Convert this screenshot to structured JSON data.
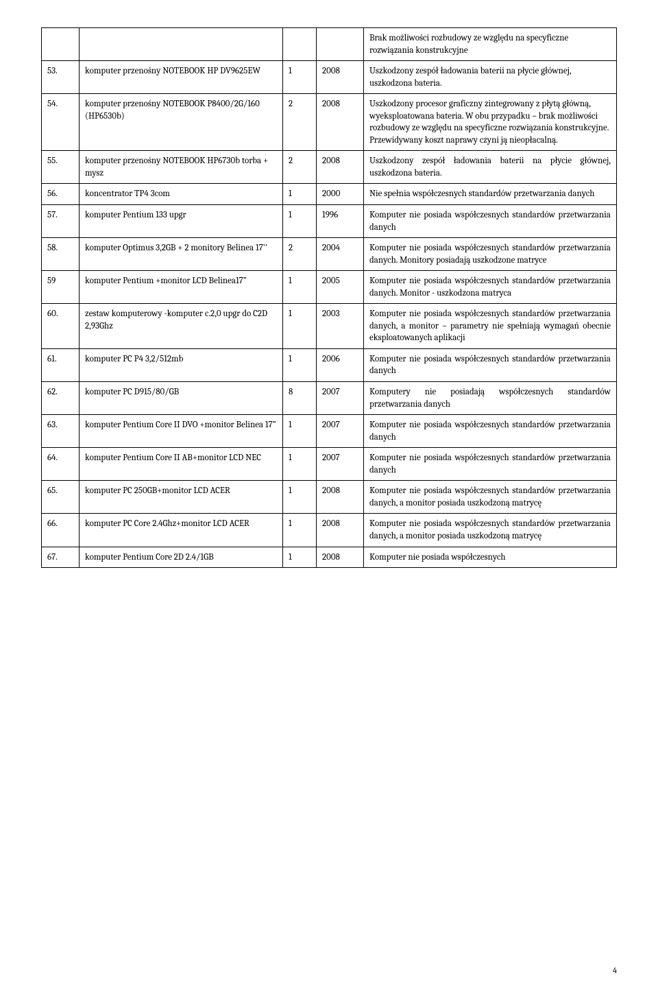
{
  "page_number": "4",
  "rows": [
    {
      "num": "",
      "name": "",
      "qty": "",
      "year": "",
      "desc": "Brak możliwości rozbudowy ze względu na specyficzne rozwiązania konstrukcyjne",
      "justify": false
    },
    {
      "num": "53.",
      "name": "komputer przenośny NOTEBOOK HP DV9625EW",
      "qty": "1",
      "year": "2008",
      "desc": "Uszkodzony zespół ładowania baterii na płycie głównej, uszkodzona bateria.",
      "justify": false
    },
    {
      "num": "54.",
      "name": "komputer przenośny NOTEBOOK P8400/2G/160 (HP6530b)",
      "qty": "2",
      "year": "2008",
      "desc": "Uszkodzony procesor graficzny zintegrowany z płytą główną, wyeksploatowana bateria. W obu przypadku – brak możliwości rozbudowy ze względu na specyficzne rozwiązania konstrukcyjne. Przewidywany koszt naprawy czyni ją nieopłacalną.",
      "justify": false
    },
    {
      "num": "55.",
      "name": "komputer przenośny NOTEBOOK HP6730b torba + mysz",
      "qty": "2",
      "year": "2008",
      "desc": "Uszkodzony zespół ładowania baterii na płycie głównej, uszkodzona bateria.",
      "justify": true
    },
    {
      "num": "56.",
      "name": "koncentrator  TP4 3com",
      "qty": "1",
      "year": "2000",
      "desc": "Nie spełnia współczesnych standardów przetwarzania danych",
      "justify": true
    },
    {
      "num": "57.",
      "name": "komputer Pentium 133 upgr",
      "qty": "1",
      "year": "1996",
      "desc": "Komputer nie posiada współczesnych standardów przetwarzania danych",
      "justify": true
    },
    {
      "num": "58.",
      "name": "komputer Optimus 3,2GB + 2 monitory Belinea 17''",
      "qty": "2",
      "year": "2004",
      "desc": "Komputer nie posiada współczesnych standardów przetwarzania danych. Monitory posiadają uszkodzone matryce",
      "justify": true
    },
    {
      "num": "59",
      "name": "komputer Pentium +monitor  LCD Belinea17”",
      "qty": "1",
      "year": "2005",
      "desc": "Komputer nie posiada współczesnych standardów przetwarzania danych. Monitor - uszkodzona matryca",
      "justify": true
    },
    {
      "num": "60.",
      "name": "zestaw komputerowy -komputer c.2,0 upgr do C2D 2,93Ghz",
      "qty": "1",
      "year": "2003",
      "desc": "Komputer nie posiada współczesnych standardów przetwarzania danych, a monitor – parametry nie spełniają wymagań obecnie eksploatowanych aplikacji",
      "justify": true
    },
    {
      "num": "61.",
      "name": "komputer PC P4 3,2/512mb",
      "qty": "1",
      "year": "2006",
      "desc": "Komputer nie posiada współczesnych standardów przetwarzania danych",
      "justify": true
    },
    {
      "num": "62.",
      "name": "komputer PC D915/80/GB",
      "qty": "8",
      "year": "2007",
      "desc": "Komputery nie posiadają współczesnych standardów przetwarzania danych",
      "justify": true
    },
    {
      "num": "63.",
      "name": "komputer Pentium Core II DVO +monitor Belinea 17”",
      "qty": "1",
      "year": "2007",
      "desc": "Komputer nie posiada współczesnych standardów przetwarzania danych",
      "justify": true
    },
    {
      "num": "64.",
      "name": "komputer Pentium Core II AB+monitor LCD NEC",
      "qty": "1",
      "year": "2007",
      "desc": "Komputer nie posiada współczesnych standardów przetwarzania danych",
      "justify": true
    },
    {
      "num": "65.",
      "name": "komputer PC 250GB+monitor LCD ACER",
      "qty": "1",
      "year": "2008",
      "desc": "Komputer nie posiada współczesnych standardów przetwarzania danych, a monitor posiada uszkodzoną matrycę",
      "justify": true
    },
    {
      "num": "66.",
      "name": "komputer PC Core 2.4Ghz+monitor LCD ACER",
      "qty": "1",
      "year": "2008",
      "desc": "Komputer nie posiada współczesnych standardów przetwarzania danych, a monitor posiada uszkodzoną matrycę",
      "justify": true
    },
    {
      "num": "67.",
      "name": "komputer Pentium Core 2D 2.4/1GB",
      "qty": "1",
      "year": "2008",
      "desc": "Komputer nie posiada współczesnych",
      "justify": true
    }
  ]
}
